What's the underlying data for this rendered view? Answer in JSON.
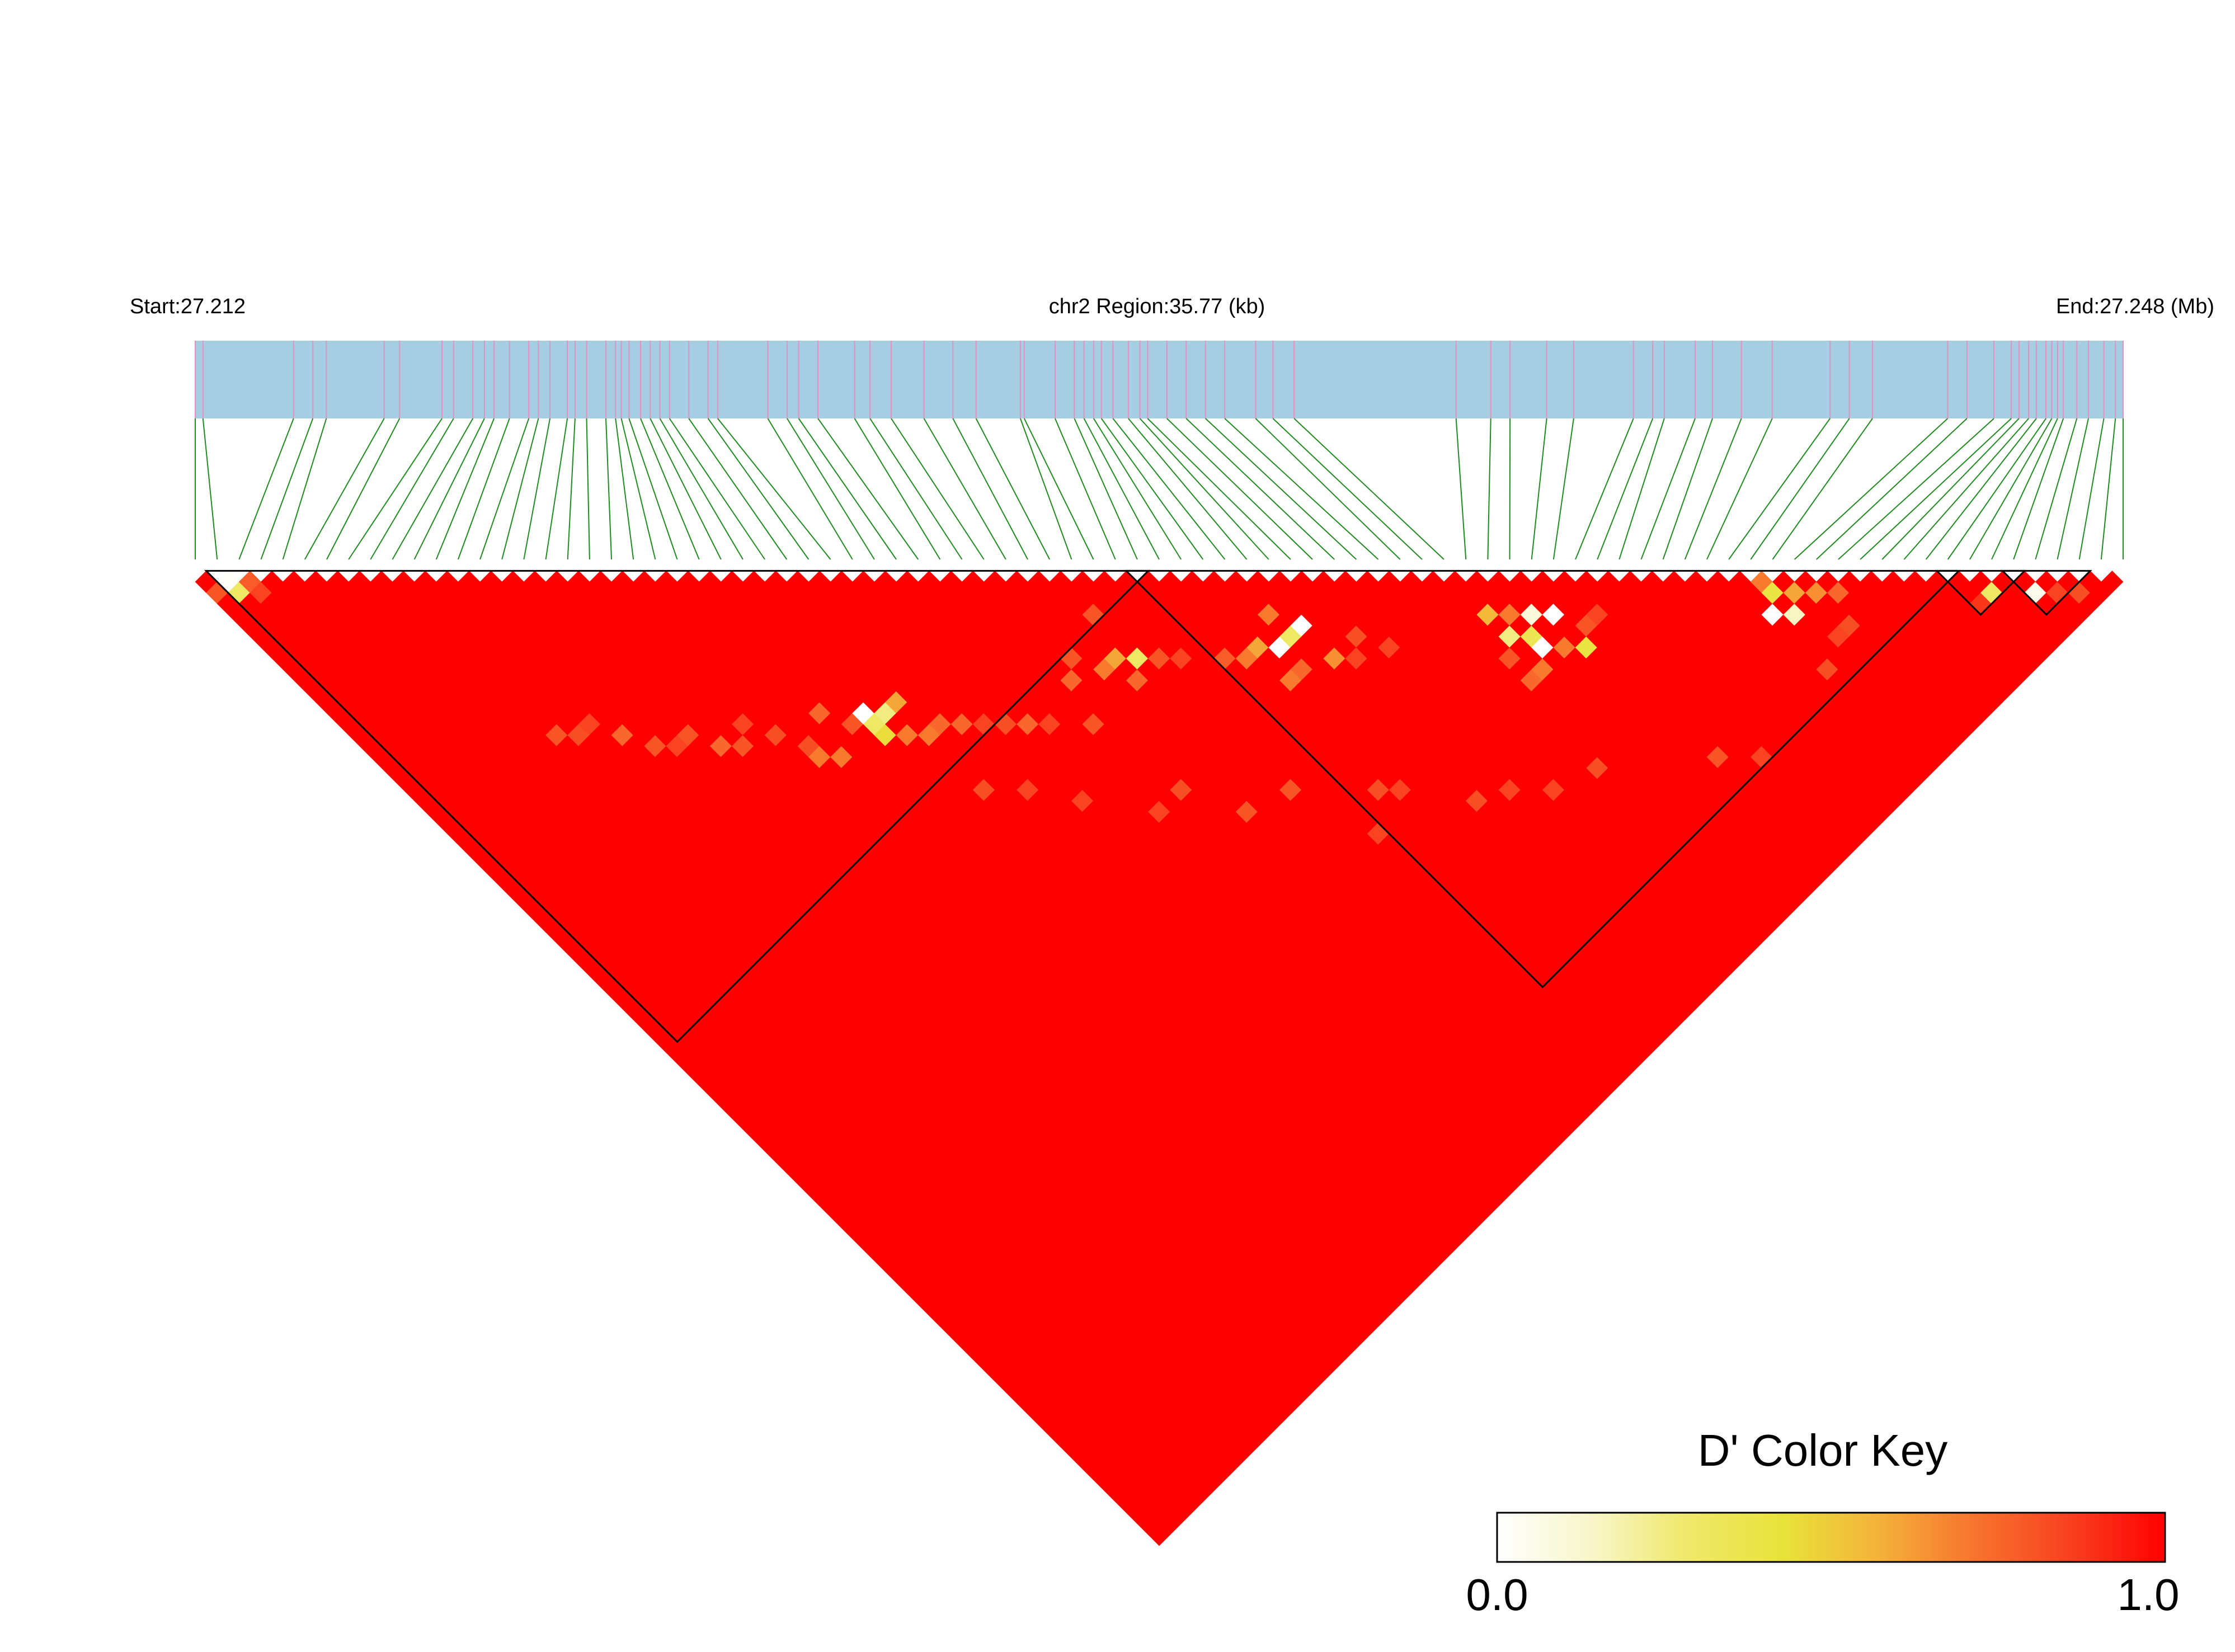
{
  "header": {
    "start_label": "Start:27.212",
    "region_label": "chr2 Region:35.77 (kb)",
    "end_label": "End:27.248 (Mb)"
  },
  "colors": {
    "track_fill": "#a6cee3",
    "snp_tick": "#e48fc3",
    "connector": "#1f8a1f",
    "ld_high": "#ff0000",
    "block_outline": "#000000"
  },
  "color_key": {
    "title": "D' Color Key",
    "min_label": "0.0",
    "max_label": "1.0",
    "stops": [
      "#ffffff",
      "#f8f6c8",
      "#efe86a",
      "#e8e33a",
      "#f4b23a",
      "#f7742e",
      "#f94020",
      "#ff0000"
    ]
  },
  "ld_map": {
    "region_start_mb": 27.212,
    "region_end_mb": 27.248,
    "region_kb": 35.77,
    "n_snps": 89,
    "snp_positions_frac": [
      0.0,
      0.004,
      0.051,
      0.061,
      0.068,
      0.098,
      0.106,
      0.128,
      0.134,
      0.144,
      0.15,
      0.155,
      0.163,
      0.173,
      0.178,
      0.184,
      0.193,
      0.197,
      0.203,
      0.213,
      0.218,
      0.221,
      0.225,
      0.231,
      0.236,
      0.241,
      0.246,
      0.256,
      0.266,
      0.271,
      0.297,
      0.307,
      0.313,
      0.323,
      0.342,
      0.35,
      0.361,
      0.378,
      0.393,
      0.405,
      0.428,
      0.43,
      0.446,
      0.456,
      0.461,
      0.466,
      0.47,
      0.476,
      0.484,
      0.49,
      0.494,
      0.504,
      0.514,
      0.524,
      0.534,
      0.55,
      0.559,
      0.57,
      0.654,
      0.672,
      0.682,
      0.701,
      0.715,
      0.746,
      0.756,
      0.762,
      0.778,
      0.787,
      0.802,
      0.818,
      0.848,
      0.858,
      0.87,
      0.909,
      0.919,
      0.933,
      0.942,
      0.946,
      0.951,
      0.955,
      0.96,
      0.963,
      0.966,
      0.969,
      0.976,
      0.982,
      0.99,
      0.996,
      1.0
    ],
    "default_dprime": 1.0,
    "cells": [
      [
        1,
        2,
        0.02
      ],
      [
        1,
        3,
        0.3
      ],
      [
        2,
        3,
        0.78
      ],
      [
        2,
        4,
        0.85
      ],
      [
        0,
        2,
        0.8
      ],
      [
        80,
        83,
        0.88
      ],
      [
        81,
        83,
        0.3
      ],
      [
        83,
        85,
        0.05
      ],
      [
        84,
        86,
        0.85
      ],
      [
        85,
        87,
        0.82
      ],
      [
        70,
        74,
        0.0
      ],
      [
        71,
        75,
        0.15
      ],
      [
        71,
        73,
        0.4
      ],
      [
        71,
        72,
        0.7
      ],
      [
        72,
        74,
        0.6
      ],
      [
        73,
        75,
        0.65
      ],
      [
        74,
        76,
        0.75
      ],
      [
        72,
        78,
        0.85
      ],
      [
        73,
        78,
        0.82
      ],
      [
        70,
        79,
        0.82
      ],
      [
        57,
        63,
        0.25
      ],
      [
        57,
        61,
        0.55
      ],
      [
        58,
        62,
        0.7
      ],
      [
        58,
        64,
        0.35
      ],
      [
        58,
        65,
        0.0
      ],
      [
        59,
        63,
        0.1
      ],
      [
        59,
        66,
        0.7
      ],
      [
        60,
        64,
        0.0
      ],
      [
        60,
        67,
        0.4
      ],
      [
        57,
        66,
        0.7
      ],
      [
        56,
        64,
        0.8
      ],
      [
        56,
        66,
        0.75
      ],
      [
        61,
        66,
        0.8
      ],
      [
        62,
        66,
        0.85
      ],
      [
        45,
        52,
        0.6
      ],
      [
        46,
        53,
        0.0
      ],
      [
        47,
        53,
        0.3
      ],
      [
        47,
        51,
        0.7
      ],
      [
        48,
        53,
        0.0
      ],
      [
        48,
        56,
        0.65
      ],
      [
        49,
        57,
        0.85
      ],
      [
        45,
        55,
        0.7
      ],
      [
        46,
        55,
        0.75
      ],
      [
        44,
        52,
        0.7
      ],
      [
        43,
        51,
        0.78
      ],
      [
        50,
        56,
        0.82
      ],
      [
        51,
        58,
        0.85
      ],
      [
        38,
        46,
        0.6
      ],
      [
        39,
        47,
        0.3
      ],
      [
        39,
        43,
        0.8
      ],
      [
        37,
        46,
        0.7
      ],
      [
        38,
        48,
        0.75
      ],
      [
        40,
        48,
        0.8
      ],
      [
        36,
        44,
        0.8
      ],
      [
        35,
        45,
        0.75
      ],
      [
        41,
        49,
        0.85
      ],
      [
        24,
        37,
        0.0
      ],
      [
        24,
        38,
        0.3
      ],
      [
        25,
        38,
        0.25
      ],
      [
        26,
        38,
        0.6
      ],
      [
        23,
        37,
        0.8
      ],
      [
        24,
        39,
        0.45
      ],
      [
        22,
        35,
        0.75
      ],
      [
        25,
        40,
        0.7
      ],
      [
        26,
        41,
        0.7
      ],
      [
        27,
        41,
        0.75
      ],
      [
        20,
        37,
        0.7
      ],
      [
        21,
        38,
        0.7
      ],
      [
        28,
        42,
        0.75
      ],
      [
        30,
        44,
        0.82
      ],
      [
        34,
        48,
        0.8
      ],
      [
        32,
        46,
        0.85
      ],
      [
        29,
        43,
        0.85
      ],
      [
        31,
        45,
        0.75
      ],
      [
        20,
        36,
        0.82
      ],
      [
        18,
        32,
        0.85
      ],
      [
        19,
        34,
        0.82
      ],
      [
        15,
        30,
        0.8
      ],
      [
        12,
        27,
        0.75
      ],
      [
        10,
        25,
        0.82
      ],
      [
        9,
        24,
        0.8
      ],
      [
        16,
        32,
        0.75
      ],
      [
        17,
        33,
        0.8
      ],
      [
        14,
        30,
        0.85
      ],
      [
        13,
        29,
        0.8
      ],
      [
        11,
        25,
        0.85
      ],
      [
        30,
        51,
        0.85
      ],
      [
        28,
        48,
        0.85
      ],
      [
        26,
        46,
        0.82
      ],
      [
        35,
        55,
        0.82
      ],
      [
        40,
        60,
        0.8
      ],
      [
        33,
        55,
        0.85
      ],
      [
        45,
        65,
        0.85
      ],
      [
        44,
        64,
        0.82
      ],
      [
        50,
        70,
        0.85
      ],
      [
        52,
        72,
        0.85
      ],
      [
        55,
        73,
        0.82
      ],
      [
        48,
        69,
        0.82
      ],
      [
        42,
        66,
        0.85
      ],
      [
        37,
        59,
        0.8
      ],
      [
        61,
        78,
        0.8
      ],
      [
        63,
        80,
        0.85
      ]
    ],
    "haplotype_blocks": [
      {
        "from": 1,
        "to": 43
      },
      {
        "from": 43,
        "to": 80
      },
      {
        "from": 80,
        "to": 83
      },
      {
        "from": 83,
        "to": 86
      }
    ]
  }
}
